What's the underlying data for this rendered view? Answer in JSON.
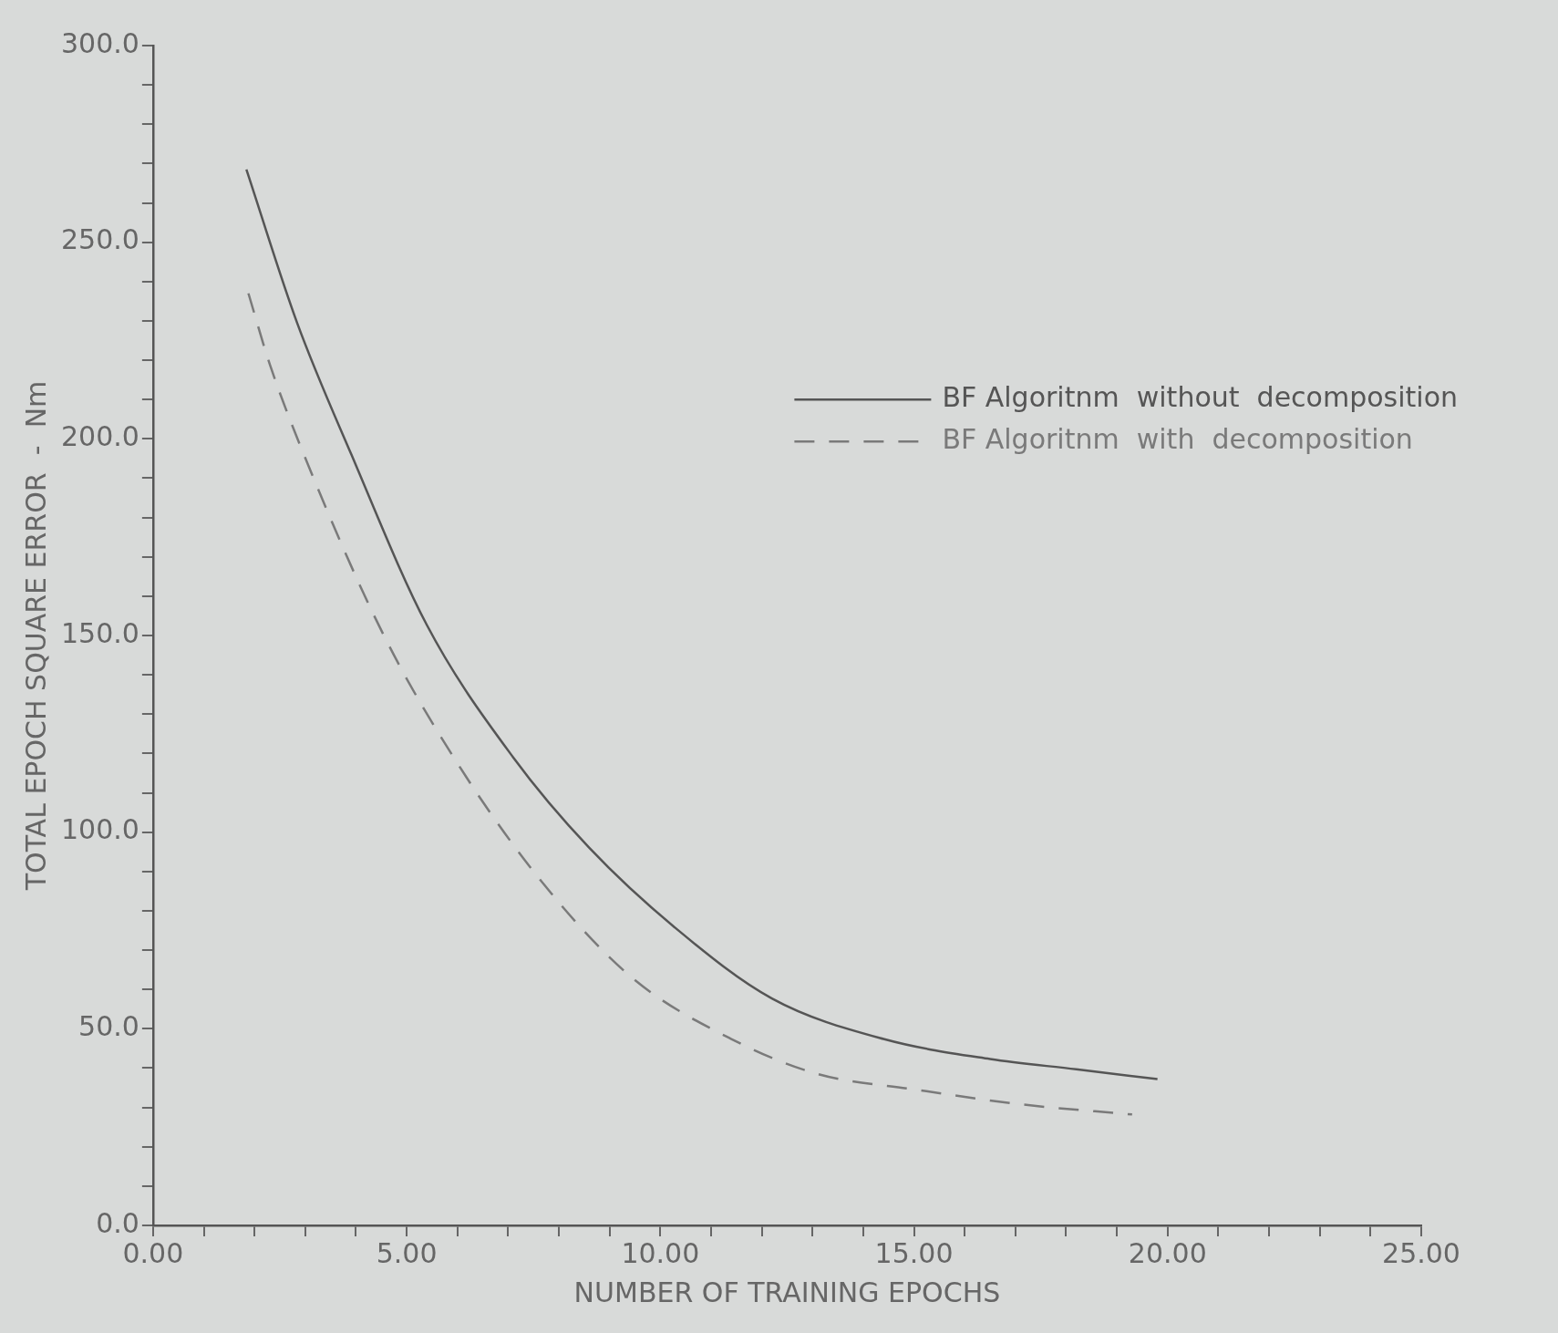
{
  "chart_data": {
    "type": "line",
    "xlabel": "NUMBER OF TRAINING EPOCHS",
    "ylabel": "TOTAL EPOCH SQUARE ERROR  -  Nm",
    "xlim": [
      0,
      25
    ],
    "ylim": [
      0,
      300
    ],
    "xticks": [
      {
        "value": 0,
        "label": "0.00"
      },
      {
        "value": 1,
        "label": null
      },
      {
        "value": 2,
        "label": null
      },
      {
        "value": 3,
        "label": null
      },
      {
        "value": 4,
        "label": null
      },
      {
        "value": 5,
        "label": "5.00"
      },
      {
        "value": 6,
        "label": null
      },
      {
        "value": 7,
        "label": null
      },
      {
        "value": 8,
        "label": null
      },
      {
        "value": 9,
        "label": null
      },
      {
        "value": 10,
        "label": "10.00"
      },
      {
        "value": 11,
        "label": null
      },
      {
        "value": 12,
        "label": null
      },
      {
        "value": 13,
        "label": null
      },
      {
        "value": 14,
        "label": null
      },
      {
        "value": 15,
        "label": "15.00"
      },
      {
        "value": 16,
        "label": null
      },
      {
        "value": 17,
        "label": null
      },
      {
        "value": 18,
        "label": null
      },
      {
        "value": 19,
        "label": null
      },
      {
        "value": 20,
        "label": "20.00"
      },
      {
        "value": 21,
        "label": null
      },
      {
        "value": 22,
        "label": null
      },
      {
        "value": 23,
        "label": null
      },
      {
        "value": 24,
        "label": null
      },
      {
        "value": 25,
        "label": "25.00"
      }
    ],
    "yticks": [
      {
        "value": 0,
        "label": "0.0"
      },
      {
        "value": 10,
        "label": null
      },
      {
        "value": 20,
        "label": null
      },
      {
        "value": 30,
        "label": null
      },
      {
        "value": 40,
        "label": null
      },
      {
        "value": 50,
        "label": "50.0"
      },
      {
        "value": 60,
        "label": null
      },
      {
        "value": 70,
        "label": null
      },
      {
        "value": 80,
        "label": null
      },
      {
        "value": 90,
        "label": null
      },
      {
        "value": 100,
        "label": "100.0"
      },
      {
        "value": 110,
        "label": null
      },
      {
        "value": 120,
        "label": null
      },
      {
        "value": 130,
        "label": null
      },
      {
        "value": 140,
        "label": null
      },
      {
        "value": 150,
        "label": "150.0"
      },
      {
        "value": 160,
        "label": null
      },
      {
        "value": 170,
        "label": null
      },
      {
        "value": 180,
        "label": null
      },
      {
        "value": 190,
        "label": null
      },
      {
        "value": 200,
        "label": "200.0"
      },
      {
        "value": 210,
        "label": null
      },
      {
        "value": 220,
        "label": null
      },
      {
        "value": 230,
        "label": null
      },
      {
        "value": 240,
        "label": null
      },
      {
        "value": 250,
        "label": "250.0"
      },
      {
        "value": 260,
        "label": null
      },
      {
        "value": 270,
        "label": null
      },
      {
        "value": 280,
        "label": null
      },
      {
        "value": 290,
        "label": null
      },
      {
        "value": 300,
        "label": "300.0"
      }
    ],
    "grid": false,
    "legend": "top right",
    "marker": "none",
    "series": [
      {
        "name": "BF Algoritnm  without  decomposition",
        "color": "#555555",
        "line_style": "solid",
        "x": [
          1.84,
          2.84,
          3.91,
          5.4,
          7.1,
          8.6,
          10.3,
          12.2,
          14.4,
          16.5,
          18.2,
          19.8
        ],
        "values": [
          268.5,
          229.5,
          196,
          152.6,
          119,
          96,
          75.6,
          57.7,
          47.4,
          42.3,
          39.7,
          37.2
        ]
      },
      {
        "name": "BF Algoritnm  with  decomposition",
        "color": "#7a7a7a",
        "line_style": "dashed",
        "x": [
          1.88,
          2.3,
          3.05,
          4.55,
          6.04,
          7.75,
          9.46,
          11.4,
          13.1,
          15.0,
          17.1,
          19.3
        ],
        "values": [
          237,
          219,
          193.6,
          150,
          116.7,
          86,
          62.8,
          47.4,
          38.5,
          34.6,
          30.8,
          28.2
        ]
      }
    ]
  }
}
